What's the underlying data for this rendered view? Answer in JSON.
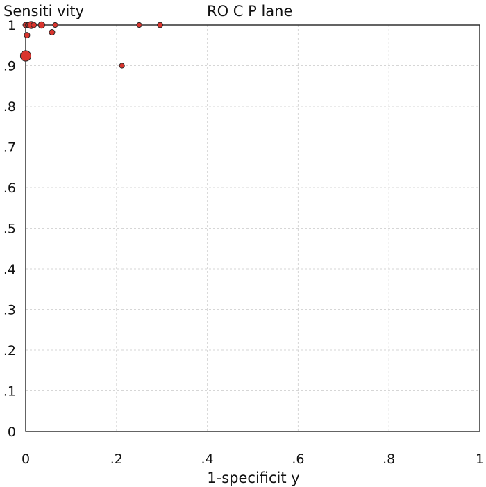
{
  "chart_data": {
    "type": "scatter",
    "title": "RO C P lane",
    "ylabel": "Sensiti vity",
    "xlabel": "1-specificit y",
    "xlim": [
      0,
      1
    ],
    "ylim": [
      0,
      1
    ],
    "grid": true,
    "marker_color": "#d9352e",
    "x_ticks": [
      0,
      0.2,
      0.4,
      0.6,
      0.8,
      1
    ],
    "x_tick_labels": [
      "0",
      ".2",
      ".4",
      ".6",
      ".8",
      "1"
    ],
    "y_ticks": [
      0,
      0.1,
      0.2,
      0.3,
      0.4,
      0.5,
      0.6,
      0.7,
      0.8,
      0.9,
      1
    ],
    "y_tick_labels": [
      "0",
      ".1",
      ".2",
      ".3",
      ".4",
      ".5",
      ".6",
      ".7",
      ".8",
      ".9",
      "1"
    ],
    "points": [
      {
        "x": 0.0,
        "y": 1.0,
        "weight": 1.0
      },
      {
        "x": 0.005,
        "y": 1.0,
        "weight": 1.0
      },
      {
        "x": 0.008,
        "y": 1.0,
        "weight": 1.1
      },
      {
        "x": 0.012,
        "y": 1.0,
        "weight": 1.3
      },
      {
        "x": 0.018,
        "y": 1.0,
        "weight": 1.0
      },
      {
        "x": 0.035,
        "y": 1.0,
        "weight": 1.2
      },
      {
        "x": 0.065,
        "y": 1.0,
        "weight": 0.9
      },
      {
        "x": 0.25,
        "y": 1.0,
        "weight": 0.9
      },
      {
        "x": 0.296,
        "y": 1.0,
        "weight": 1.0
      },
      {
        "x": 0.003,
        "y": 0.975,
        "weight": 1.0
      },
      {
        "x": 0.058,
        "y": 0.982,
        "weight": 1.0
      },
      {
        "x": 0.0,
        "y": 0.924,
        "weight": 1.9
      },
      {
        "x": 0.212,
        "y": 0.9,
        "weight": 0.9
      }
    ]
  }
}
